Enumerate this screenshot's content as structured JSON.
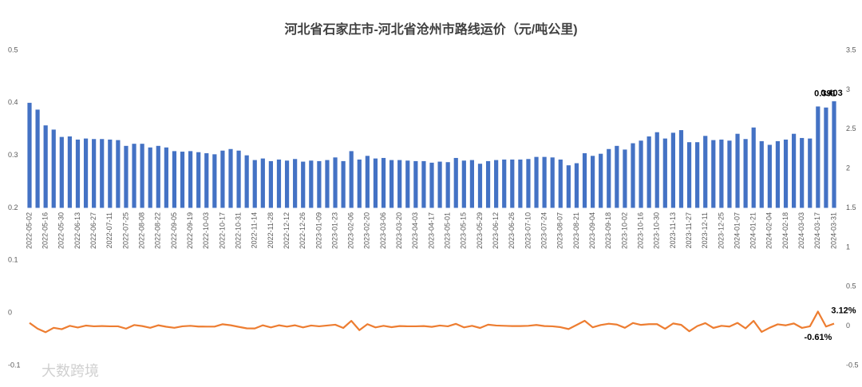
{
  "chart_data": {
    "type": "bar",
    "title": "河北省石家庄市-河北省沧州市路线运价（元/吨公里)",
    "watermark": "大数跨境",
    "categories": [
      "2022-05-02",
      null,
      "2022-05-16",
      null,
      "2022-05-30",
      null,
      "2022-06-13",
      null,
      "2022-06-27",
      null,
      "2022-07-11",
      null,
      "2022-07-25",
      null,
      "2022-08-08",
      null,
      "2022-08-22",
      null,
      "2022-09-05",
      null,
      "2022-09-19",
      null,
      "2022-10-03",
      null,
      "2022-10-17",
      null,
      "2022-10-31",
      null,
      "2022-11-14",
      null,
      "2022-11-28",
      null,
      "2022-12-12",
      null,
      "2022-12-26",
      null,
      "2023-01-09",
      null,
      "2023-01-23",
      null,
      "2023-02-06",
      null,
      "2023-02-20",
      null,
      "2023-03-06",
      null,
      "2023-03-20",
      null,
      "2023-04-03",
      null,
      "2023-04-17",
      null,
      "2023-05-01",
      null,
      "2023-05-15",
      null,
      "2023-05-29",
      null,
      "2023-06-12",
      null,
      "2023-06-26",
      null,
      "2023-07-10",
      null,
      "2023-07-24",
      null,
      "2023-08-07",
      null,
      "2023-08-21",
      null,
      "2023-09-04",
      null,
      "2023-09-18",
      null,
      "2023-10-02",
      null,
      "2023-10-16",
      null,
      "2023-10-30",
      null,
      "2023-11-13",
      null,
      "2023-11-27",
      null,
      "2023-12-11",
      null,
      "2023-12-25",
      null,
      "2024-01-07",
      null,
      "2024-01-21",
      null,
      "2024-02-04",
      null,
      "2024-02-18",
      null,
      "2024-03-03",
      null,
      "2024-03-17",
      null,
      "2024-03-31"
    ],
    "series": [
      {
        "type": "bar",
        "color": "#4472c4",
        "base": 0.2,
        "values": [
          0.4,
          0.387,
          0.357,
          0.349,
          0.335,
          0.336,
          0.33,
          0.332,
          0.331,
          0.331,
          0.33,
          0.329,
          0.318,
          0.322,
          0.322,
          0.315,
          0.318,
          0.315,
          0.308,
          0.307,
          0.308,
          0.306,
          0.304,
          0.302,
          0.309,
          0.312,
          0.309,
          0.3,
          0.291,
          0.294,
          0.289,
          0.292,
          0.29,
          0.293,
          0.288,
          0.29,
          0.289,
          0.291,
          0.296,
          0.289,
          0.308,
          0.292,
          0.299,
          0.294,
          0.295,
          0.291,
          0.291,
          0.29,
          0.289,
          0.289,
          0.286,
          0.288,
          0.287,
          0.295,
          0.29,
          0.291,
          0.284,
          0.289,
          0.291,
          0.292,
          0.292,
          0.292,
          0.293,
          0.297,
          0.297,
          0.296,
          0.292,
          0.281,
          0.285,
          0.304,
          0.299,
          0.303,
          0.312,
          0.318,
          0.311,
          0.323,
          0.328,
          0.336,
          0.344,
          0.332,
          0.343,
          0.348,
          0.325,
          0.325,
          0.337,
          0.329,
          0.33,
          0.328,
          0.341,
          0.331,
          0.353,
          0.327,
          0.32,
          0.327,
          0.33,
          0.341,
          0.333,
          0.332,
          0.393,
          0.391,
          0.403
        ],
        "value_labels": [
          null,
          null,
          null,
          null,
          null,
          null,
          null,
          null,
          null,
          null,
          null,
          null,
          null,
          null,
          null,
          null,
          null,
          null,
          null,
          null,
          null,
          null,
          null,
          null,
          null,
          null,
          null,
          null,
          null,
          null,
          null,
          null,
          null,
          null,
          null,
          null,
          null,
          null,
          null,
          null,
          null,
          null,
          null,
          null,
          null,
          null,
          null,
          null,
          null,
          null,
          null,
          null,
          null,
          null,
          null,
          null,
          null,
          null,
          null,
          null,
          null,
          null,
          null,
          null,
          null,
          null,
          null,
          null,
          null,
          null,
          null,
          null,
          null,
          null,
          null,
          null,
          null,
          null,
          null,
          null,
          null,
          null,
          null,
          null,
          null,
          null,
          null,
          null,
          null,
          null,
          null,
          null,
          null,
          null,
          null,
          null,
          null,
          null,
          null,
          "0.391",
          "0.403"
        ]
      },
      {
        "type": "line",
        "axis": "y2",
        "color": "#ed7d31",
        "values": [
          0.04,
          -0.033,
          -0.078,
          -0.022,
          -0.04,
          0.003,
          -0.018,
          0.006,
          -0.003,
          0,
          -0.003,
          -0.003,
          -0.033,
          0.013,
          0,
          -0.022,
          0.01,
          -0.009,
          -0.022,
          -0.003,
          0.003,
          -0.006,
          -0.007,
          -0.007,
          0.023,
          0.01,
          -0.01,
          -0.029,
          -0.03,
          0.01,
          -0.017,
          0.01,
          -0.007,
          0.01,
          -0.017,
          0.007,
          -0.003,
          0.007,
          0.017,
          -0.024,
          0.066,
          -0.052,
          0.024,
          -0.017,
          0.003,
          -0.014,
          0,
          -0.003,
          -0.003,
          0,
          -0.01,
          0.007,
          -0.003,
          0.028,
          -0.017,
          0.003,
          -0.024,
          0.018,
          0.007,
          0.003,
          0,
          0,
          0.003,
          0.014,
          0,
          -0.003,
          -0.014,
          -0.038,
          0.014,
          0.067,
          -0.016,
          0.013,
          0.03,
          0.019,
          -0.022,
          0.039,
          0.015,
          0.024,
          0.024,
          -0.035,
          0.033,
          0.015,
          -0.066,
          0,
          0.037,
          -0.024,
          0.003,
          -0.006,
          0.04,
          -0.029,
          0.066,
          -0.074,
          -0.021,
          0.022,
          0.009,
          0.033,
          -0.023,
          -0.003,
          0.184,
          -0.0061,
          0.0312
        ],
        "value_labels": [
          null,
          null,
          null,
          null,
          null,
          null,
          null,
          null,
          null,
          null,
          null,
          null,
          null,
          null,
          null,
          null,
          null,
          null,
          null,
          null,
          null,
          null,
          null,
          null,
          null,
          null,
          null,
          null,
          null,
          null,
          null,
          null,
          null,
          null,
          null,
          null,
          null,
          null,
          null,
          null,
          null,
          null,
          null,
          null,
          null,
          null,
          null,
          null,
          null,
          null,
          null,
          null,
          null,
          null,
          null,
          null,
          null,
          null,
          null,
          null,
          null,
          null,
          null,
          null,
          null,
          null,
          null,
          null,
          null,
          null,
          null,
          null,
          null,
          null,
          null,
          null,
          null,
          null,
          null,
          null,
          null,
          null,
          null,
          null,
          null,
          null,
          null,
          null,
          null,
          null,
          null,
          null,
          null,
          null,
          null,
          null,
          null,
          null,
          null,
          "-0.61%",
          "3.12%"
        ]
      }
    ],
    "ylim": [
      -0.1,
      0.5
    ],
    "yticks": [
      -0.1,
      0,
      0.1,
      0.2,
      0.3,
      0.4,
      0.5
    ],
    "y2lim": [
      -0.5,
      3.5
    ],
    "y2ticks": [
      -0.5,
      0,
      0.5,
      1,
      1.5,
      2,
      2.5,
      3,
      3.5
    ],
    "grid": false
  }
}
